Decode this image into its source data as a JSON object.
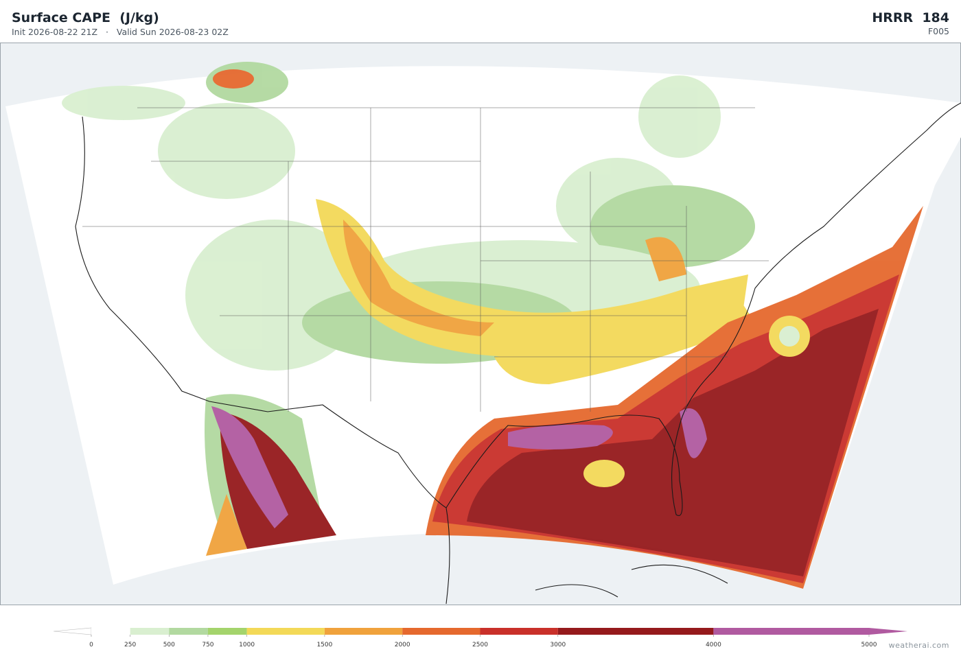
{
  "header": {
    "title": "Surface CAPE  (J/kg)",
    "init": "Init 2026-08-22 21Z",
    "separator": "·",
    "valid": "Valid Sun 2026-08-23 02Z",
    "model": "HRRR  184",
    "forecast_hour": "F005"
  },
  "colorbar": {
    "ticks": [
      0,
      250,
      500,
      750,
      1000,
      1500,
      2000,
      2500,
      3000,
      4000,
      5000
    ],
    "colors": [
      "#ffffff",
      "#d9efd0",
      "#b2d9a0",
      "#a4d46c",
      "#f3d958",
      "#f0a23c",
      "#e5692e",
      "#c9302a",
      "#951a1c",
      "#b05aa0"
    ]
  },
  "footer": {
    "credit": "weatherai.com"
  }
}
